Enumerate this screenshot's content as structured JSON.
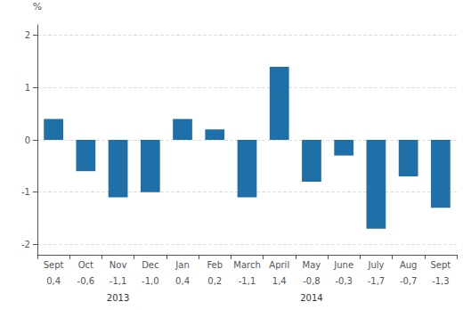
{
  "chart_data": {
    "type": "bar",
    "ylabel": "%",
    "categories": [
      "Sept",
      "Oct",
      "Nov",
      "Dec",
      "Jan",
      "Feb",
      "March",
      "April",
      "May",
      "June",
      "July",
      "Aug",
      "Sept"
    ],
    "values": [
      0.4,
      -0.6,
      -1.1,
      -1.0,
      0.4,
      0.2,
      -1.1,
      1.4,
      -0.8,
      -0.3,
      -1.7,
      -0.7,
      -1.3
    ],
    "data_labels": true,
    "value_labels": [
      "0,4",
      "-0,6",
      "-1,1",
      "-1,0",
      "0,4",
      "0,2",
      "-1,1",
      "1,4",
      "-0,8",
      "-0,3",
      "-1,7",
      "-0,7",
      "-1,3"
    ],
    "color": "#1F6FA8",
    "ylim": [
      -2.2,
      2.2
    ],
    "yticks": [
      -2,
      -1,
      0,
      1,
      2
    ],
    "grid": true,
    "annotations": [
      {
        "text": "2013",
        "from": 1,
        "to": 3
      },
      {
        "text": "2014",
        "from": 4,
        "to": 12
      }
    ]
  }
}
